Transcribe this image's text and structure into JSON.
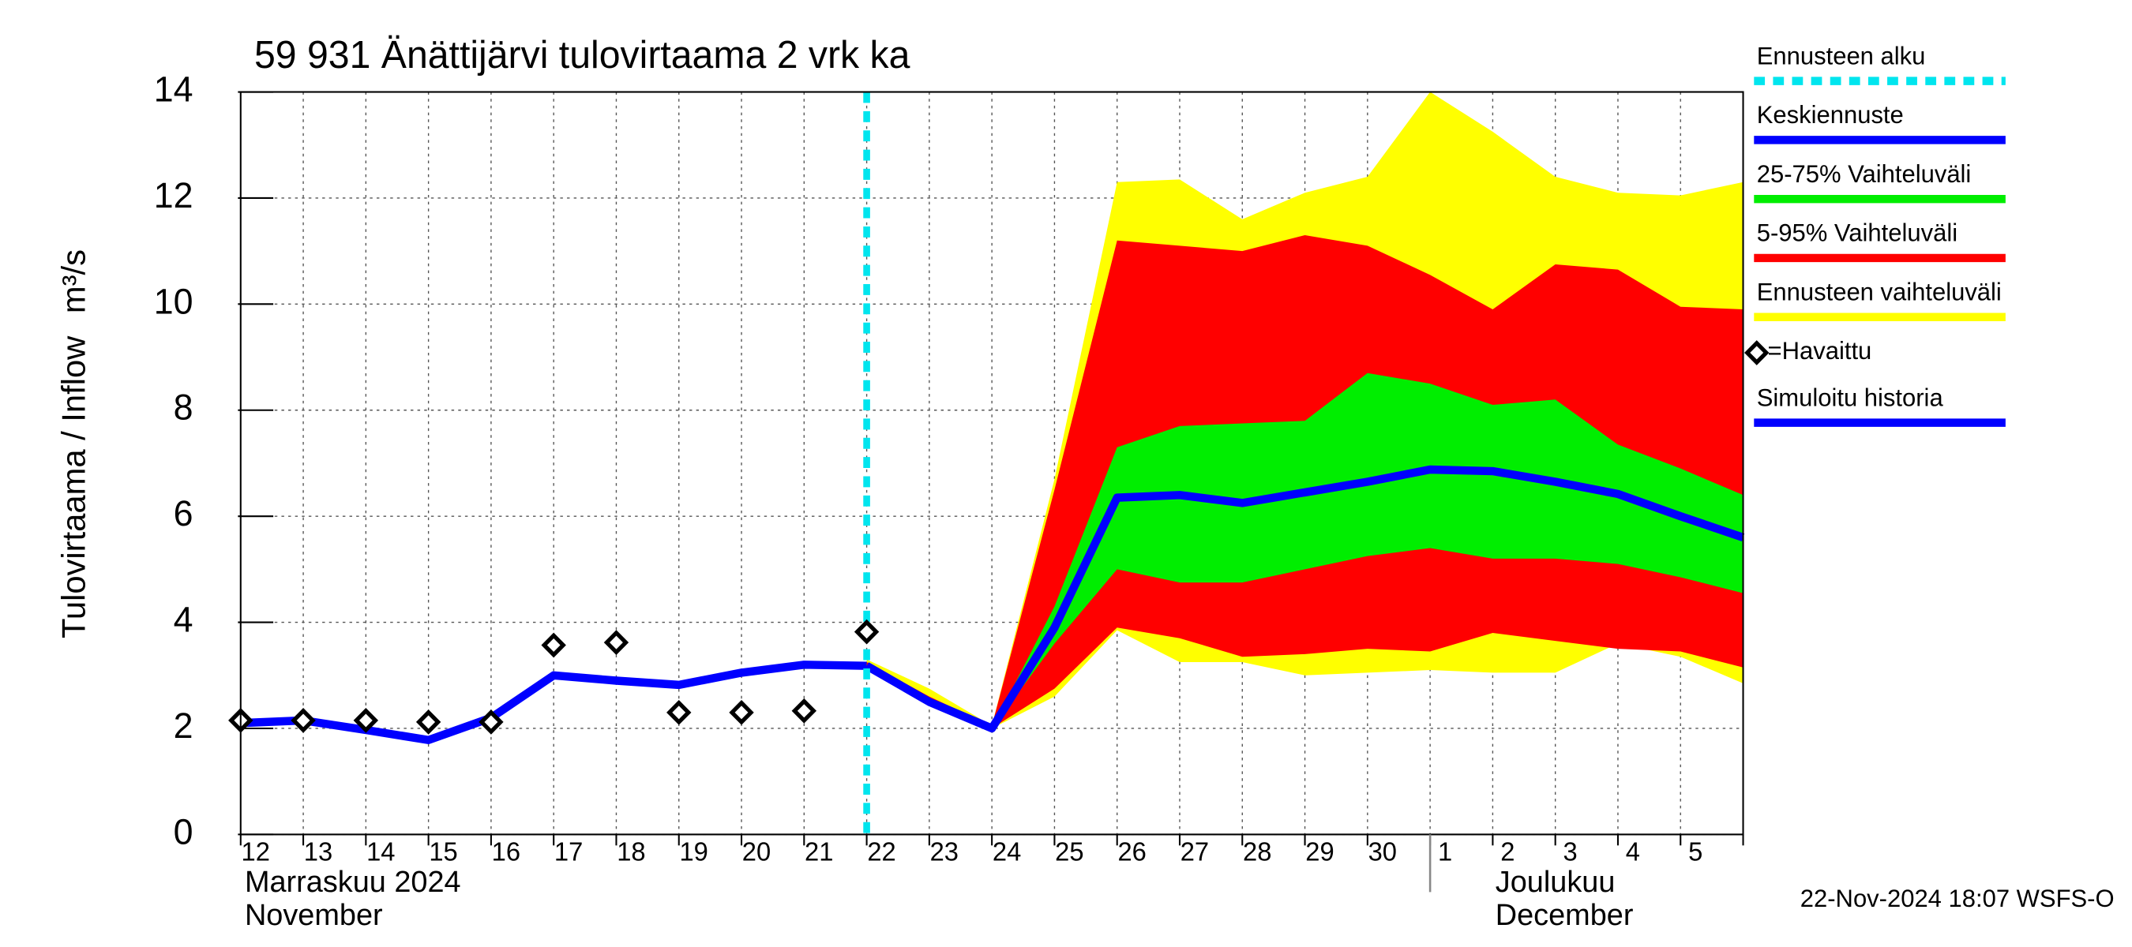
{
  "chart_data": {
    "type": "forecast",
    "title": "59 931 Änättijärvi tulovirtaama 2 vrk ka",
    "y_label": "Tulovirtaama / Inflow",
    "y_unit": "m³/s",
    "categories": [
      "12",
      "13",
      "14",
      "15",
      "16",
      "17",
      "18",
      "19",
      "20",
      "21",
      "22",
      "23",
      "24",
      "25",
      "26",
      "27",
      "28",
      "29",
      "30",
      "1",
      "2",
      "3",
      "4",
      "5",
      null
    ],
    "months": [
      [
        "Marraskuu 2024",
        "November"
      ],
      [
        "Joulukuu",
        "December"
      ]
    ],
    "ylim": [
      0,
      14
    ],
    "yticks": [
      0,
      2,
      4,
      6,
      8,
      10,
      12,
      14
    ],
    "grid": true,
    "footer": "22-Nov-2024 18:07 WSFS-O",
    "series": [
      {
        "name": "Ennusteen alku",
        "color": "#00e5ee",
        "kind": "vline"
      },
      {
        "name": "Keskiennuste",
        "color": "#0000ff",
        "kind": "line",
        "values": [
          null,
          null,
          null,
          null,
          null,
          null,
          null,
          null,
          null,
          null,
          3.18,
          2.5,
          2.0,
          3.9,
          6.35,
          6.4,
          6.25,
          6.45,
          6.65,
          6.88,
          6.85,
          6.65,
          6.42,
          6.0,
          5.6
        ]
      },
      {
        "name": "25-75% Vaihteluväli",
        "color": "#00ee00",
        "kind": "band",
        "values": [
          null,
          null,
          null,
          null,
          null,
          null,
          null,
          null,
          null,
          null,
          3.2,
          2.55,
          2.0,
          4.3,
          7.3,
          7.7,
          7.75,
          7.8,
          8.7,
          8.5,
          8.1,
          8.2,
          7.35,
          6.9,
          6.4
        ],
        "lower": [
          null,
          null,
          null,
          null,
          null,
          null,
          null,
          null,
          null,
          null,
          3.18,
          2.5,
          2.0,
          3.6,
          5.0,
          4.75,
          4.75,
          5.0,
          5.25,
          5.4,
          5.2,
          5.2,
          5.1,
          4.85,
          4.55
        ]
      },
      {
        "name": "5-95% Vaihteluväli",
        "color": "#ff0000",
        "kind": "band",
        "values": [
          null,
          null,
          null,
          null,
          null,
          null,
          null,
          null,
          null,
          null,
          3.25,
          2.6,
          2.05,
          6.5,
          11.2,
          11.1,
          11.0,
          11.3,
          11.1,
          10.55,
          9.9,
          10.75,
          10.65,
          9.95,
          9.9
        ],
        "lower": [
          null,
          null,
          null,
          null,
          null,
          null,
          null,
          null,
          null,
          null,
          3.15,
          2.5,
          2.0,
          2.75,
          3.9,
          3.7,
          3.35,
          3.4,
          3.5,
          3.45,
          3.8,
          3.65,
          3.5,
          3.45,
          3.15
        ]
      },
      {
        "name": "Ennusteen vaihteluväli",
        "color": "#ffff00",
        "kind": "band",
        "values": [
          null,
          null,
          null,
          null,
          null,
          null,
          null,
          null,
          null,
          null,
          3.3,
          2.75,
          2.05,
          6.7,
          12.3,
          12.35,
          11.6,
          12.1,
          12.4,
          14.0,
          13.25,
          12.4,
          12.1,
          12.05,
          12.3
        ],
        "lower": [
          null,
          null,
          null,
          null,
          null,
          null,
          null,
          null,
          null,
          null,
          3.15,
          2.45,
          2.0,
          2.6,
          3.85,
          3.25,
          3.25,
          3.0,
          3.05,
          3.1,
          3.05,
          3.05,
          3.6,
          3.35,
          2.85
        ]
      },
      {
        "name": "=Havaittu",
        "color": "#000000",
        "kind": "points",
        "values": [
          2.15,
          2.15,
          2.15,
          2.12,
          2.12,
          3.57,
          3.62,
          2.3,
          2.3,
          2.33,
          3.82,
          null,
          null,
          null,
          null,
          null,
          null,
          null,
          null,
          null,
          null,
          null,
          null,
          null,
          null
        ]
      },
      {
        "name": "Simuloitu historia",
        "color": "#0000ff",
        "kind": "line",
        "values": [
          2.1,
          2.15,
          1.97,
          1.78,
          2.2,
          3.0,
          2.9,
          2.82,
          3.05,
          3.2,
          3.18,
          null,
          null,
          null,
          null,
          null,
          null,
          null,
          null,
          null,
          null,
          null,
          null,
          null,
          null
        ]
      }
    ]
  }
}
